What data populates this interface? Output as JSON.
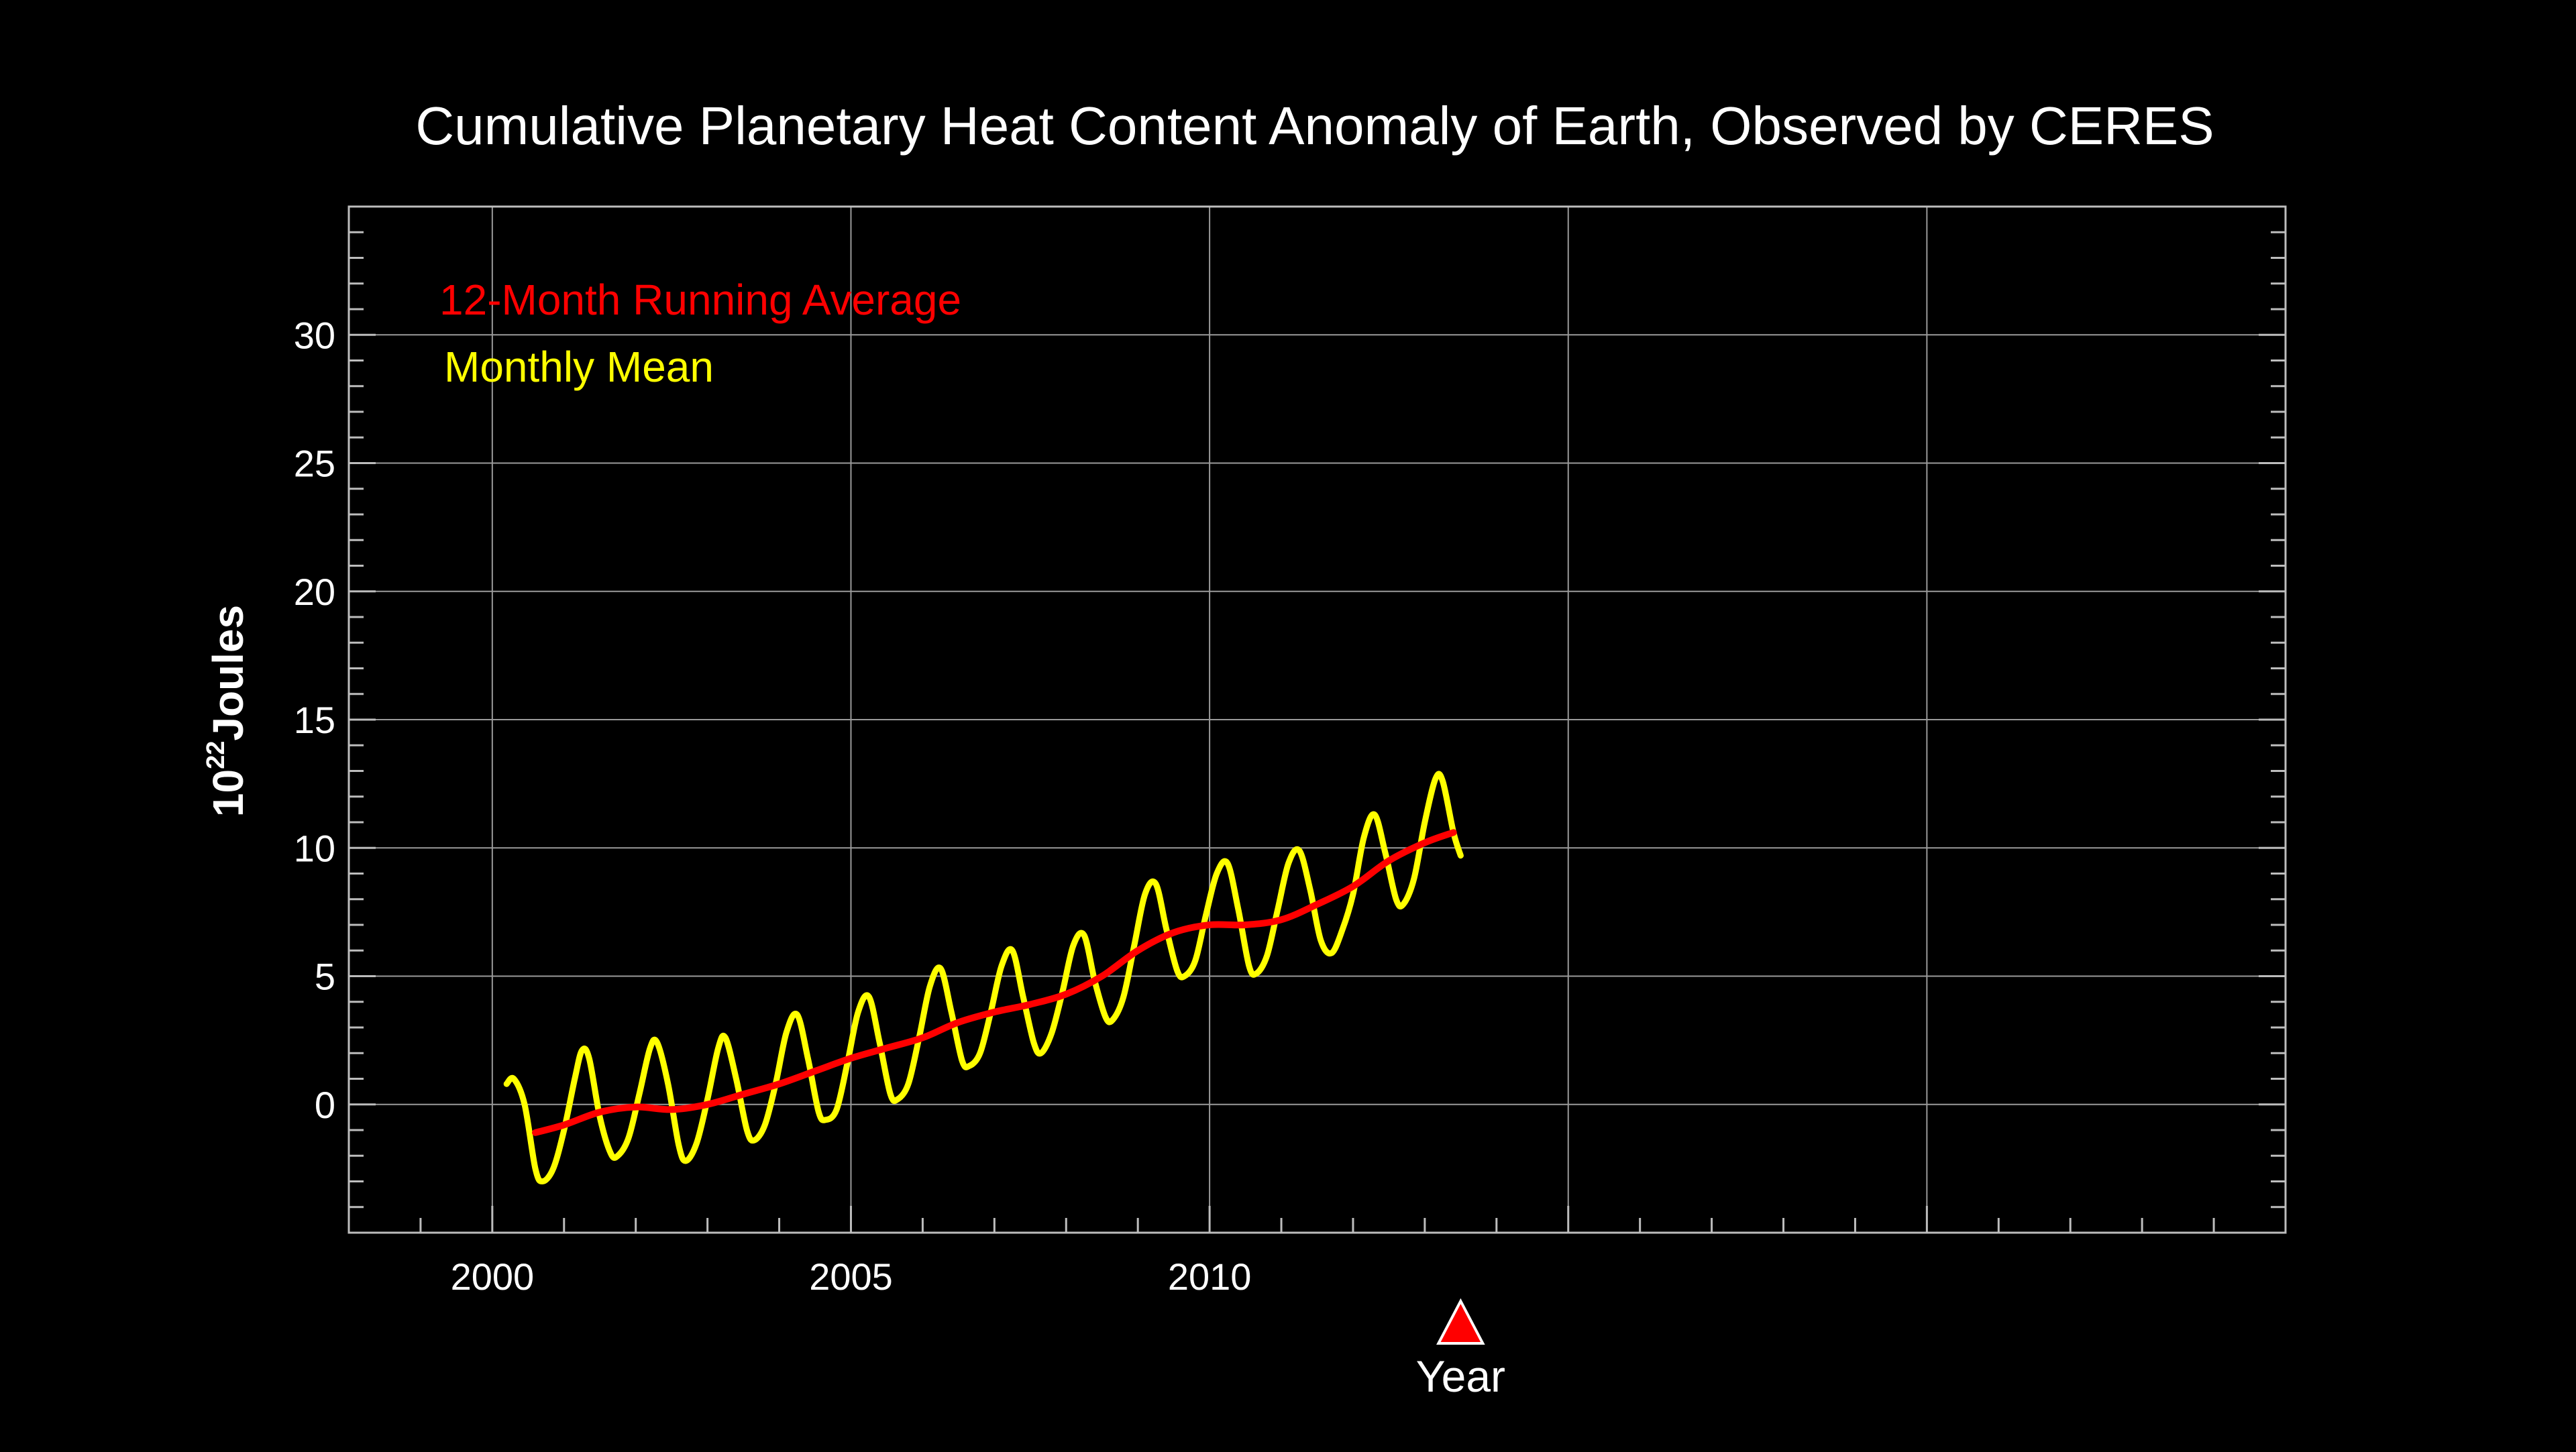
{
  "colors": {
    "background": "#000000",
    "axis": "#ffffff",
    "grid": "#9a9a9a",
    "running_avg": "#ff0000",
    "monthly": "#ffff00",
    "marker": "#ff0000"
  },
  "chart_data": {
    "type": "line",
    "title": "Cumulative Planetary Heat Content Anomaly of Earth, Observed by CERES",
    "xlabel": "Year",
    "ylabel": {
      "base": "10",
      "exponent": "22",
      "unit": "Joules"
    },
    "xlim": [
      1998.0,
      2025.0
    ],
    "ylim": [
      -5,
      35
    ],
    "grid": true,
    "legend": "top-left",
    "x_ticks": [
      {
        "value": 2000,
        "label": "2000"
      },
      {
        "value": 2005,
        "label": "2005"
      },
      {
        "value": 2010,
        "label": "2010"
      },
      {
        "value": 2015,
        "label": ""
      },
      {
        "value": 2020,
        "label": ""
      }
    ],
    "y_ticks": [
      {
        "value": 0,
        "label": "0"
      },
      {
        "value": 5,
        "label": "5"
      },
      {
        "value": 10,
        "label": "10"
      },
      {
        "value": 15,
        "label": "15"
      },
      {
        "value": 20,
        "label": "20"
      },
      {
        "value": 25,
        "label": "25"
      },
      {
        "value": 30,
        "label": "30"
      }
    ],
    "current_marker_x": 2013.5,
    "series": [
      {
        "name": "12-Month Running Average",
        "color": "#ff0000",
        "points": [
          [
            2000.6,
            -1.1
          ],
          [
            2001.0,
            -0.8
          ],
          [
            2001.5,
            -0.3
          ],
          [
            2002.0,
            -0.1
          ],
          [
            2002.5,
            -0.2
          ],
          [
            2003.0,
            0.0
          ],
          [
            2003.5,
            0.4
          ],
          [
            2004.0,
            0.8
          ],
          [
            2004.5,
            1.3
          ],
          [
            2005.0,
            1.8
          ],
          [
            2005.5,
            2.2
          ],
          [
            2006.0,
            2.6
          ],
          [
            2006.5,
            3.2
          ],
          [
            2007.0,
            3.6
          ],
          [
            2007.5,
            3.9
          ],
          [
            2008.0,
            4.3
          ],
          [
            2008.5,
            5.0
          ],
          [
            2009.0,
            6.0
          ],
          [
            2009.5,
            6.7
          ],
          [
            2010.0,
            7.0
          ],
          [
            2010.5,
            7.0
          ],
          [
            2011.0,
            7.2
          ],
          [
            2011.5,
            7.8
          ],
          [
            2012.0,
            8.5
          ],
          [
            2012.5,
            9.5
          ],
          [
            2013.0,
            10.2
          ],
          [
            2013.4,
            10.6
          ]
        ]
      },
      {
        "name": "Monthly Mean",
        "color": "#ffff00",
        "points": [
          [
            2000.2,
            0.8
          ],
          [
            2000.3,
            1.0
          ],
          [
            2000.45,
            0.0
          ],
          [
            2000.6,
            -2.5
          ],
          [
            2000.7,
            -3.0
          ],
          [
            2000.85,
            -2.5
          ],
          [
            2001.0,
            -1.0
          ],
          [
            2001.15,
            1.0
          ],
          [
            2001.25,
            2.1
          ],
          [
            2001.35,
            1.8
          ],
          [
            2001.5,
            -0.5
          ],
          [
            2001.65,
            -1.9
          ],
          [
            2001.75,
            -2.0
          ],
          [
            2001.9,
            -1.3
          ],
          [
            2002.05,
            0.4
          ],
          [
            2002.2,
            2.2
          ],
          [
            2002.3,
            2.4
          ],
          [
            2002.45,
            0.8
          ],
          [
            2002.6,
            -1.6
          ],
          [
            2002.7,
            -2.2
          ],
          [
            2002.85,
            -1.5
          ],
          [
            2003.0,
            0.2
          ],
          [
            2003.15,
            2.2
          ],
          [
            2003.25,
            2.6
          ],
          [
            2003.4,
            1.0
          ],
          [
            2003.55,
            -1.0
          ],
          [
            2003.65,
            -1.4
          ],
          [
            2003.8,
            -0.8
          ],
          [
            2003.95,
            0.8
          ],
          [
            2004.1,
            2.8
          ],
          [
            2004.25,
            3.5
          ],
          [
            2004.4,
            1.8
          ],
          [
            2004.55,
            -0.3
          ],
          [
            2004.65,
            -0.6
          ],
          [
            2004.8,
            -0.2
          ],
          [
            2004.95,
            1.6
          ],
          [
            2005.1,
            3.6
          ],
          [
            2005.25,
            4.2
          ],
          [
            2005.4,
            2.4
          ],
          [
            2005.55,
            0.4
          ],
          [
            2005.65,
            0.2
          ],
          [
            2005.8,
            0.8
          ],
          [
            2005.95,
            2.6
          ],
          [
            2006.1,
            4.6
          ],
          [
            2006.25,
            5.3
          ],
          [
            2006.4,
            3.6
          ],
          [
            2006.55,
            1.7
          ],
          [
            2006.65,
            1.5
          ],
          [
            2006.8,
            2.0
          ],
          [
            2006.95,
            3.6
          ],
          [
            2007.1,
            5.4
          ],
          [
            2007.25,
            6.0
          ],
          [
            2007.4,
            4.2
          ],
          [
            2007.55,
            2.4
          ],
          [
            2007.65,
            2.0
          ],
          [
            2007.8,
            2.8
          ],
          [
            2007.95,
            4.4
          ],
          [
            2008.1,
            6.2
          ],
          [
            2008.25,
            6.6
          ],
          [
            2008.4,
            4.8
          ],
          [
            2008.55,
            3.4
          ],
          [
            2008.65,
            3.3
          ],
          [
            2008.8,
            4.2
          ],
          [
            2008.95,
            6.2
          ],
          [
            2009.1,
            8.2
          ],
          [
            2009.25,
            8.6
          ],
          [
            2009.4,
            6.8
          ],
          [
            2009.55,
            5.2
          ],
          [
            2009.65,
            5.0
          ],
          [
            2009.8,
            5.6
          ],
          [
            2009.95,
            7.4
          ],
          [
            2010.1,
            9.0
          ],
          [
            2010.25,
            9.4
          ],
          [
            2010.4,
            7.6
          ],
          [
            2010.55,
            5.4
          ],
          [
            2010.65,
            5.1
          ],
          [
            2010.8,
            5.8
          ],
          [
            2010.95,
            7.6
          ],
          [
            2011.1,
            9.4
          ],
          [
            2011.25,
            9.9
          ],
          [
            2011.4,
            8.4
          ],
          [
            2011.55,
            6.4
          ],
          [
            2011.7,
            5.9
          ],
          [
            2011.85,
            6.8
          ],
          [
            2012.0,
            8.2
          ],
          [
            2012.15,
            10.4
          ],
          [
            2012.3,
            11.3
          ],
          [
            2012.45,
            9.8
          ],
          [
            2012.6,
            8.0
          ],
          [
            2012.7,
            7.8
          ],
          [
            2012.85,
            8.8
          ],
          [
            2013.0,
            11.0
          ],
          [
            2013.15,
            12.7
          ],
          [
            2013.25,
            12.6
          ],
          [
            2013.4,
            10.6
          ],
          [
            2013.5,
            9.7
          ]
        ]
      }
    ]
  }
}
